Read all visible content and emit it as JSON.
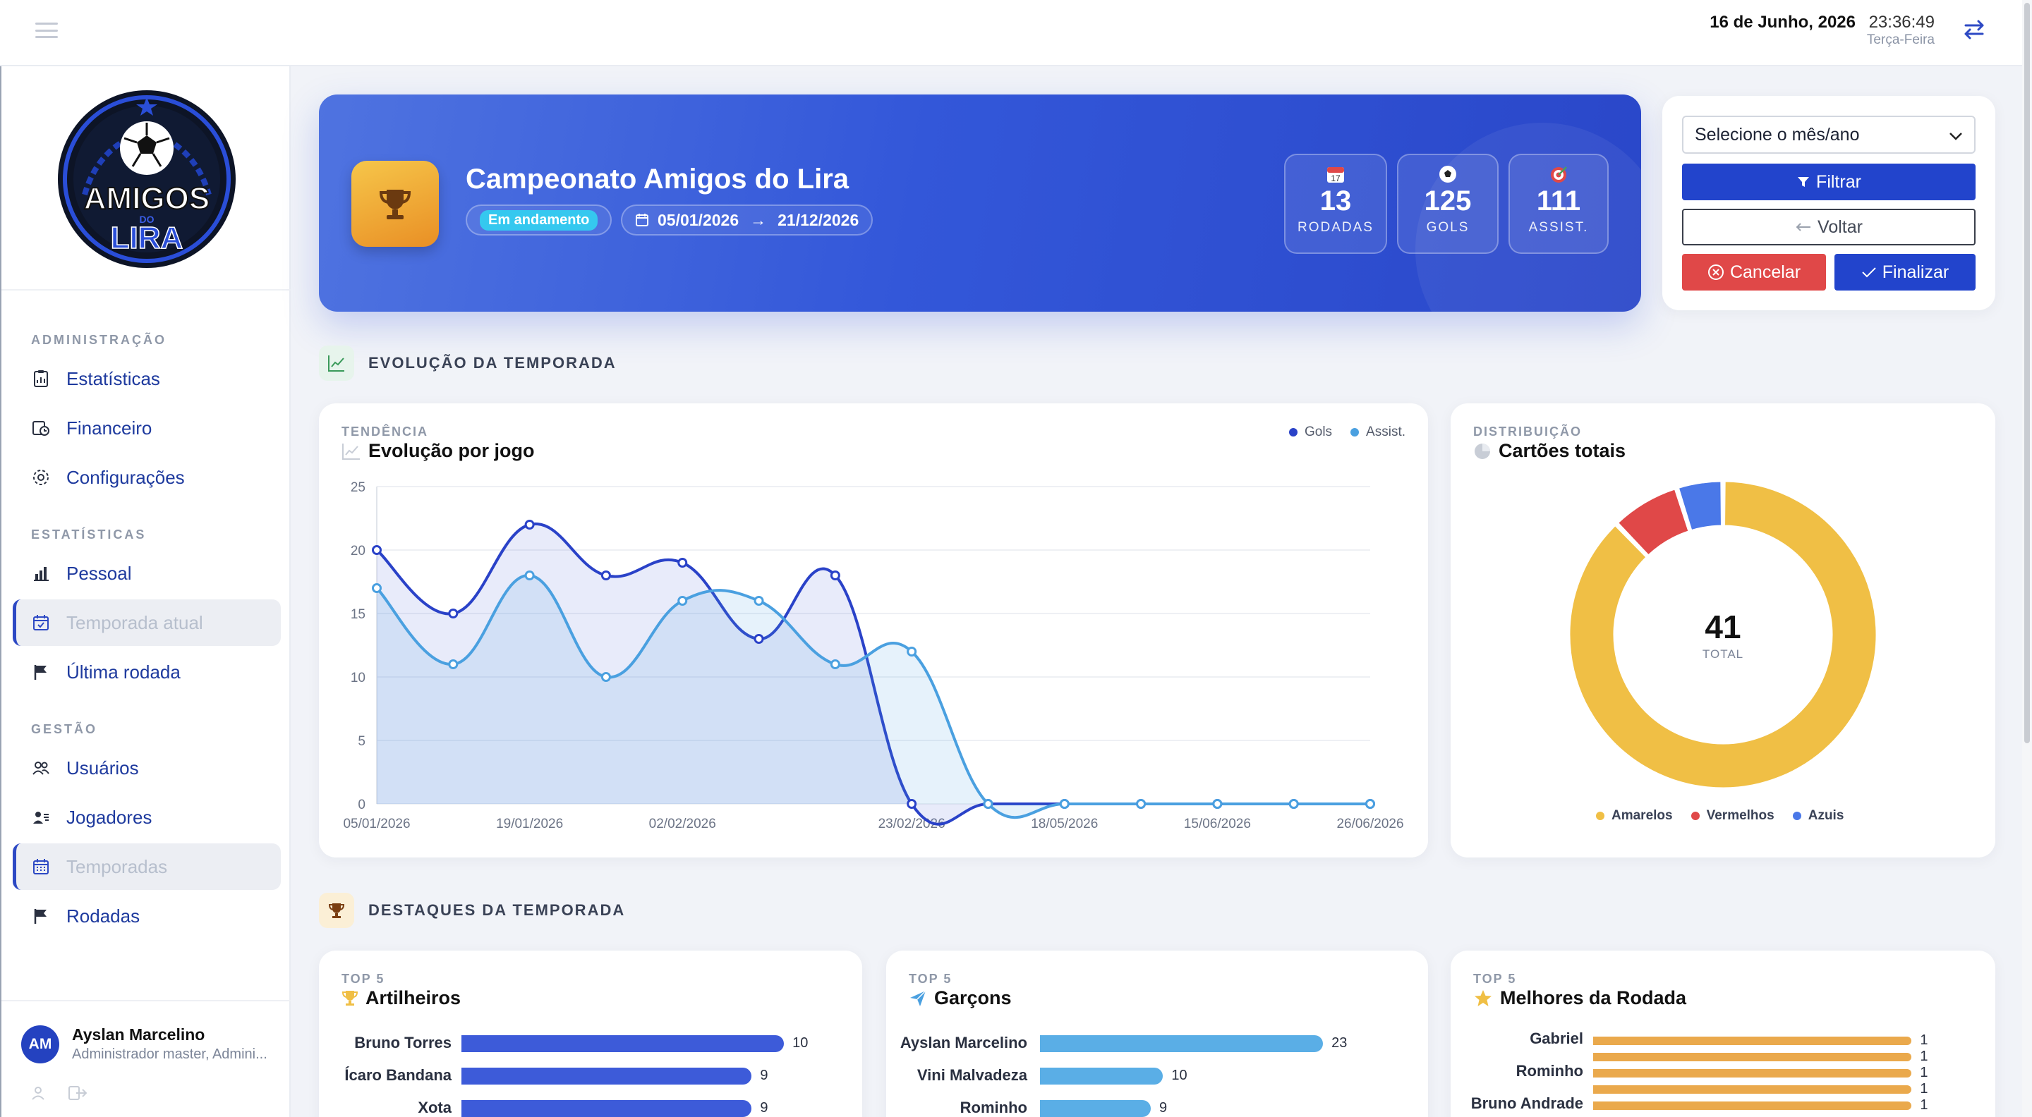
{
  "topbar": {
    "date": "16 de Junho, 2026",
    "time": "23:36:49",
    "weekday": "Terça-Feira",
    "menu_icon": "hamburger-icon",
    "swap_icon": "swap-arrows-icon"
  },
  "logo": {
    "line1": "AMIGOS",
    "line2": "DO",
    "line3": "LIRA"
  },
  "sidebar": {
    "sections": [
      {
        "title": "ADMINISTRAÇÃO"
      },
      {
        "title": "ESTATÍSTICAS"
      },
      {
        "title": "GESTÃO"
      }
    ],
    "items": [
      {
        "label": "Estatísticas",
        "icon": "clipboard-chart-icon"
      },
      {
        "label": "Financeiro",
        "icon": "money-clock-icon"
      },
      {
        "label": "Configurações",
        "icon": "gear-icon"
      },
      {
        "label": "Pessoal",
        "icon": "bar-chart-icon"
      },
      {
        "label": "Temporada atual",
        "icon": "calendar-check-icon",
        "active": true
      },
      {
        "label": "Última rodada",
        "icon": "flag-icon"
      },
      {
        "label": "Usuários",
        "icon": "users-icon"
      },
      {
        "label": "Jogadores",
        "icon": "id-card-icon"
      },
      {
        "label": "Temporadas",
        "icon": "calendar-icon",
        "active": true
      },
      {
        "label": "Rodadas",
        "icon": "flag-icon"
      }
    ],
    "user": {
      "initials": "AM",
      "name": "Ayslan Marcelino",
      "role": "Administrador master, Admini..."
    }
  },
  "banner": {
    "title": "Campeonato Amigos do Lira",
    "status": "Em andamento",
    "start_date": "05/01/2026",
    "end_date": "21/12/2026",
    "stats": [
      {
        "value": "13",
        "label": "RODADAS",
        "icon": "calendar-emoji-icon"
      },
      {
        "value": "125",
        "label": "GOLS",
        "icon": "soccer-ball-icon"
      },
      {
        "value": "111",
        "label": "ASSIST.",
        "icon": "target-icon"
      }
    ]
  },
  "filters": {
    "select_placeholder": "Selecione o mês/ano",
    "filter_label": "Filtrar",
    "back_label": "Voltar",
    "cancel_label": "Cancelar",
    "finish_label": "Finalizar"
  },
  "sections": {
    "evolution": "EVOLUÇÃO DA TEMPORADA",
    "highlights": "DESTAQUES DA TEMPORADA"
  },
  "colors": {
    "primary": "#2244cc",
    "gols": "#2a42c8",
    "assist": "#4aa0e0",
    "amarelos": "#f0bf45",
    "vermelhos": "#e04848",
    "azuis": "#4a78e8"
  },
  "trend_card": {
    "kicker": "TENDÊNCIA",
    "title": "Evolução por jogo",
    "chart_data": {
      "type": "line",
      "x": [
        "05/01/2026",
        "12/01/2026",
        "19/01/2026",
        "26/01/2026",
        "02/02/2026",
        "09/02/2026",
        "16/02/2026",
        "23/02/2026",
        "02/03/2026",
        "18/05/2026",
        "01/06/2026",
        "15/06/2026",
        "22/06/2026",
        "26/06/2026"
      ],
      "xtick_labels": [
        "05/01/2026",
        "19/01/2026",
        "02/02/2026",
        "23/02/2026",
        "18/05/2026",
        "15/06/2026",
        "26/06/2026"
      ],
      "series": [
        {
          "name": "Gols",
          "values": [
            20,
            15,
            22,
            18,
            19,
            13,
            18,
            0,
            0,
            0,
            0,
            0,
            0,
            0
          ]
        },
        {
          "name": "Assist.",
          "values": [
            17,
            11,
            18,
            10,
            16,
            16,
            11,
            12,
            0,
            0,
            0,
            0,
            0,
            0
          ]
        }
      ],
      "ylim": [
        0,
        25
      ],
      "yticks": [
        0,
        5,
        10,
        15,
        20,
        25
      ],
      "grid": true,
      "legend": "top-right"
    }
  },
  "donut_card": {
    "kicker": "DISTRIBUIÇÃO",
    "title": "Cartões totais",
    "total": "41",
    "total_label": "TOTAL",
    "chart_data": {
      "type": "pie",
      "categories": [
        "Amarelos",
        "Vermelhos",
        "Azuis"
      ],
      "values": [
        36,
        3,
        2
      ],
      "legend": "bottom"
    }
  },
  "top_cards": [
    {
      "kicker": "TOP 5",
      "title": "Artilheiros",
      "icon": "trophy-icon",
      "color": "#3d5bd9",
      "chart_data": {
        "type": "bar",
        "categories": [
          "Bruno Torres",
          "Ícaro Bandana",
          "Xota"
        ],
        "values": [
          10,
          9,
          9
        ],
        "value_labels": [
          "10",
          "9",
          "9"
        ],
        "xlim": [
          0,
          10.5
        ]
      }
    },
    {
      "kicker": "TOP 5",
      "title": "Garçons",
      "icon": "paper-plane-icon",
      "color": "#5aaee6",
      "chart_data": {
        "type": "bar",
        "categories": [
          "Ayslan Marcelino",
          "Vini Malvadeza",
          "Rominho"
        ],
        "values": [
          23,
          10,
          9
        ],
        "value_labels": [
          "23",
          "10",
          "9"
        ],
        "xlim": [
          0,
          25
        ]
      }
    },
    {
      "kicker": "TOP 5",
      "title": "Melhores da Rodada",
      "icon": "star-icon",
      "color": "#eaa94c",
      "chart_data": {
        "type": "bar",
        "categories": [
          "Gabriel",
          "",
          "Rominho",
          "",
          "Bruno Andrade"
        ],
        "values": [
          1,
          1,
          1,
          1,
          1
        ],
        "value_labels": [
          "1",
          "1",
          "1",
          "1",
          "1"
        ],
        "xlim": [
          0,
          1.05
        ]
      }
    }
  ]
}
